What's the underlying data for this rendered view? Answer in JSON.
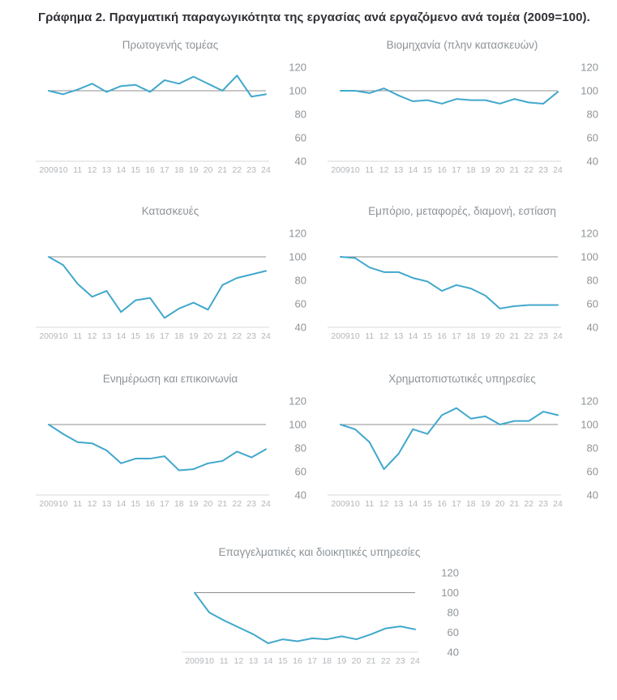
{
  "page_title": "Γράφημα 2. Πραγματική παραγωγικότητα της εργασίας ανά εργαζόμενο ανά τομέα (2009=100).",
  "style": {
    "line_color": "#41A8CC",
    "ref_line_color": "#8f8f8f",
    "axis_line_color": "#dadada",
    "background": "#ffffff"
  },
  "chart_data": [
    {
      "type": "line",
      "title": "Πρωτογενής τομέας",
      "x": [
        "2009",
        "10",
        "11",
        "12",
        "13",
        "14",
        "15",
        "16",
        "17",
        "18",
        "19",
        "20",
        "21",
        "22",
        "23",
        "24"
      ],
      "values": [
        100,
        97,
        101,
        106,
        99,
        104,
        105,
        99,
        109,
        106,
        112,
        106,
        100,
        113,
        95,
        97
      ],
      "ylim": [
        40,
        120
      ],
      "yticks": [
        40,
        60,
        80,
        100,
        120
      ],
      "ref_line": 100,
      "grid": false,
      "legend": false
    },
    {
      "type": "line",
      "title": "Βιομηχανία (πλην κατασκευών)",
      "x": [
        "2009",
        "10",
        "11",
        "12",
        "13",
        "14",
        "15",
        "16",
        "17",
        "18",
        "19",
        "20",
        "21",
        "22",
        "23",
        "24"
      ],
      "values": [
        100,
        100,
        98,
        102,
        96,
        91,
        92,
        89,
        93,
        92,
        92,
        89,
        93,
        90,
        89,
        99
      ],
      "ylim": [
        40,
        120
      ],
      "yticks": [
        40,
        60,
        80,
        100,
        120
      ],
      "ref_line": 100,
      "grid": false,
      "legend": false
    },
    {
      "type": "line",
      "title": "Κατασκευές",
      "x": [
        "2009",
        "10",
        "11",
        "12",
        "13",
        "14",
        "15",
        "16",
        "17",
        "18",
        "19",
        "20",
        "21",
        "22",
        "23",
        "24"
      ],
      "values": [
        100,
        93,
        77,
        66,
        71,
        53,
        63,
        65,
        48,
        56,
        61,
        55,
        76,
        82,
        85,
        88
      ],
      "ylim": [
        40,
        120
      ],
      "yticks": [
        40,
        60,
        80,
        100,
        120
      ],
      "ref_line": 100,
      "grid": false,
      "legend": false
    },
    {
      "type": "line",
      "title": "Εμπόριο, μεταφορές, διαμονή, εστίαση",
      "x": [
        "2009",
        "10",
        "11",
        "12",
        "13",
        "14",
        "15",
        "16",
        "17",
        "18",
        "19",
        "20",
        "21",
        "22",
        "23",
        "24"
      ],
      "values": [
        100,
        99,
        91,
        87,
        87,
        82,
        79,
        71,
        76,
        73,
        67,
        56,
        58,
        59,
        59,
        59
      ],
      "ylim": [
        40,
        120
      ],
      "yticks": [
        40,
        60,
        80,
        100,
        120
      ],
      "ref_line": 100,
      "grid": false,
      "legend": false
    },
    {
      "type": "line",
      "title": "Ενημέρωση και επικοινωνία",
      "x": [
        "2009",
        "10",
        "11",
        "12",
        "13",
        "14",
        "15",
        "16",
        "17",
        "18",
        "19",
        "20",
        "21",
        "22",
        "23",
        "24"
      ],
      "values": [
        100,
        92,
        85,
        84,
        78,
        67,
        71,
        71,
        73,
        61,
        62,
        67,
        69,
        77,
        72,
        79
      ],
      "ylim": [
        40,
        120
      ],
      "yticks": [
        40,
        60,
        80,
        100,
        120
      ],
      "ref_line": 100,
      "grid": false,
      "legend": false
    },
    {
      "type": "line",
      "title": "Χρηματοπιστωτικές υπηρεσίες",
      "x": [
        "2009",
        "10",
        "11",
        "12",
        "13",
        "14",
        "15",
        "16",
        "17",
        "18",
        "19",
        "20",
        "21",
        "22",
        "23",
        "24"
      ],
      "values": [
        100,
        96,
        85,
        62,
        75,
        96,
        92,
        108,
        114,
        105,
        107,
        100,
        103,
        103,
        111,
        108
      ],
      "ylim": [
        40,
        120
      ],
      "yticks": [
        40,
        60,
        80,
        100,
        120
      ],
      "ref_line": 100,
      "grid": false,
      "legend": false
    },
    {
      "type": "line",
      "title": "Επαγγελματικές και διοικητικές υπηρεσίες",
      "x": [
        "2009",
        "10",
        "11",
        "12",
        "13",
        "14",
        "15",
        "16",
        "17",
        "18",
        "19",
        "20",
        "21",
        "22",
        "23",
        "24"
      ],
      "values": [
        100,
        80,
        72,
        65,
        58,
        49,
        53,
        51,
        54,
        53,
        56,
        53,
        58,
        64,
        66,
        63
      ],
      "ylim": [
        40,
        120
      ],
      "yticks": [
        40,
        60,
        80,
        100,
        120
      ],
      "ref_line": 100,
      "grid": false,
      "legend": false
    }
  ]
}
